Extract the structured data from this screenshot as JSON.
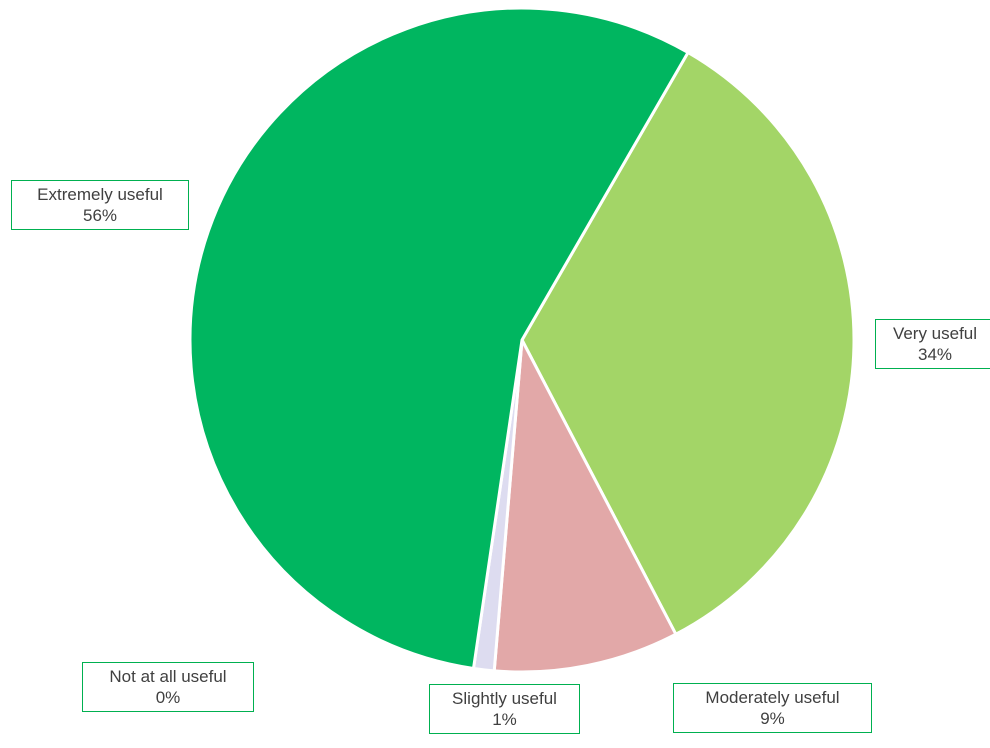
{
  "chart_data": {
    "type": "pie",
    "title": "",
    "slices": [
      {
        "label": "Extremely useful",
        "pct_label": "56%",
        "value": 56,
        "color": "#00b660"
      },
      {
        "label": "Very useful",
        "pct_label": "34%",
        "value": 34,
        "color": "#a3d567"
      },
      {
        "label": "Moderately useful",
        "pct_label": "9%",
        "value": 9,
        "color": "#e2a8a8"
      },
      {
        "label": "Slightly useful",
        "pct_label": "1%",
        "value": 1,
        "color": "#dddcf0"
      },
      {
        "label": "Not at all useful",
        "pct_label": "0%",
        "value": 0,
        "color": "#c0c0c0"
      }
    ],
    "label_border_color": "#00b050",
    "slice_separator_color": "#ffffff",
    "legend": "none"
  }
}
